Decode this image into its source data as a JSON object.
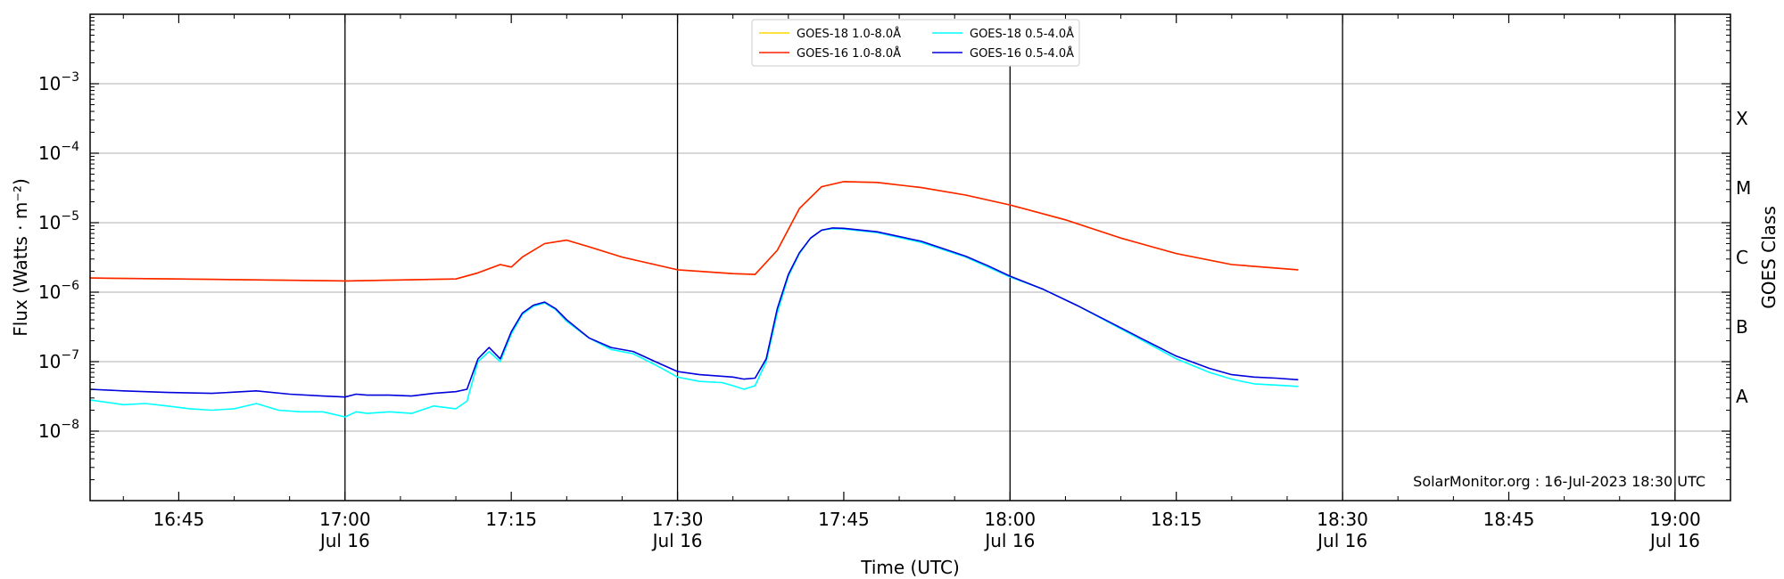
{
  "chart_data": {
    "type": "line",
    "xlabel": "Time (UTC)",
    "ylabel": "Flux (Watts · m⁻²)",
    "y2label": "GOES Class",
    "yscale": "log",
    "xlim": [
      "16:37",
      "19:05"
    ],
    "ylim": [
      1e-09,
      0.01
    ],
    "grid": "horizontal",
    "legend_position": "top-center",
    "credit": "SolarMonitor.org : 16-Jul-2023 18:30 UTC",
    "x_ticks": [
      {
        "time": "16:45",
        "label": "16:45",
        "sublabel": ""
      },
      {
        "time": "17:00",
        "label": "17:00",
        "sublabel": "Jul 16"
      },
      {
        "time": "17:15",
        "label": "17:15",
        "sublabel": ""
      },
      {
        "time": "17:30",
        "label": "17:30",
        "sublabel": "Jul 16"
      },
      {
        "time": "17:45",
        "label": "17:45",
        "sublabel": ""
      },
      {
        "time": "18:00",
        "label": "18:00",
        "sublabel": "Jul 16"
      },
      {
        "time": "18:15",
        "label": "18:15",
        "sublabel": ""
      },
      {
        "time": "18:30",
        "label": "18:30",
        "sublabel": "Jul 16"
      },
      {
        "time": "18:45",
        "label": "18:45",
        "sublabel": ""
      },
      {
        "time": "19:00",
        "label": "19:00",
        "sublabel": "Jul 16"
      }
    ],
    "y_ticks": [
      {
        "value": 1e-08,
        "mantissa": "10",
        "exp": "−8"
      },
      {
        "value": 1e-07,
        "mantissa": "10",
        "exp": "−7"
      },
      {
        "value": 1e-06,
        "mantissa": "10",
        "exp": "−6"
      },
      {
        "value": 1e-05,
        "mantissa": "10",
        "exp": "−5"
      },
      {
        "value": 0.0001,
        "mantissa": "10",
        "exp": "−4"
      },
      {
        "value": 0.001,
        "mantissa": "10",
        "exp": "−3"
      }
    ],
    "goes_classes": [
      {
        "label": "A",
        "value": 3.16e-08
      },
      {
        "label": "B",
        "value": 3.16e-07
      },
      {
        "label": "C",
        "value": 3.16e-06
      },
      {
        "label": "M",
        "value": 3.16e-05
      },
      {
        "label": "X",
        "value": 0.000316
      }
    ],
    "vertical_lines": [
      "17:00",
      "17:30",
      "18:00",
      "18:30",
      "19:00"
    ],
    "legend": [
      {
        "name": "GOES-18 1.0-8.0Å",
        "color": "#ffd700"
      },
      {
        "name": "GOES-18 0.5-4.0Å",
        "color": "#00ffff"
      },
      {
        "name": "GOES-16 1.0-8.0Å",
        "color": "#ff2000"
      },
      {
        "name": "GOES-16 0.5-4.0Å",
        "color": "#0000dd"
      }
    ],
    "series": [
      {
        "name": "GOES-18 1.0-8.0Å",
        "color": "#ffd700",
        "x": [
          "16:37",
          "16:45",
          "17:00",
          "17:10",
          "17:12",
          "17:14",
          "17:15",
          "17:16",
          "17:18",
          "17:20",
          "17:22",
          "17:25",
          "17:30",
          "17:35",
          "17:37",
          "17:39",
          "17:41",
          "17:43",
          "17:45",
          "17:48",
          "17:52",
          "17:56",
          "18:00",
          "18:05",
          "18:10",
          "18:15",
          "18:20",
          "18:26"
        ],
        "y": [
          1.6e-06,
          1.55e-06,
          1.45e-06,
          1.55e-06,
          1.9e-06,
          2.5e-06,
          2.3e-06,
          3.2e-06,
          5e-06,
          5.6e-06,
          4.5e-06,
          3.2e-06,
          2.1e-06,
          1.85e-06,
          1.8e-06,
          4e-06,
          1.6e-05,
          3.3e-05,
          3.9e-05,
          3.8e-05,
          3.2e-05,
          2.5e-05,
          1.8e-05,
          1.1e-05,
          6e-06,
          3.6e-06,
          2.5e-06,
          2.1e-06
        ]
      },
      {
        "name": "GOES-18 0.5-4.0Å",
        "color": "#00ffff",
        "x": [
          "16:37",
          "16:40",
          "16:42",
          "16:44",
          "16:46",
          "16:48",
          "16:50",
          "16:52",
          "16:54",
          "16:56",
          "16:58",
          "17:00",
          "17:01",
          "17:02",
          "17:04",
          "17:06",
          "17:08",
          "17:10",
          "17:11",
          "17:12",
          "17:13",
          "17:14",
          "17:15",
          "17:16",
          "17:17",
          "17:18",
          "17:19",
          "17:20",
          "17:22",
          "17:24",
          "17:26",
          "17:28",
          "17:30",
          "17:32",
          "17:34",
          "17:35",
          "17:36",
          "17:37",
          "17:38",
          "17:39",
          "17:40",
          "17:41",
          "17:42",
          "17:43",
          "17:44",
          "17:45",
          "17:48",
          "17:52",
          "17:56",
          "17:58",
          "18:00",
          "18:03",
          "18:06",
          "18:09",
          "18:12",
          "18:15",
          "18:18",
          "18:20",
          "18:22",
          "18:24",
          "18:26"
        ],
        "y": [
          2.8e-08,
          2.4e-08,
          2.5e-08,
          2.3e-08,
          2.1e-08,
          2e-08,
          2.1e-08,
          2.5e-08,
          2e-08,
          1.9e-08,
          1.9e-08,
          1.6e-08,
          1.9e-08,
          1.8e-08,
          1.9e-08,
          1.8e-08,
          2.3e-08,
          2.1e-08,
          2.7e-08,
          1e-07,
          1.4e-07,
          1e-07,
          2.5e-07,
          4.8e-07,
          6.3e-07,
          7e-07,
          5.6e-07,
          3.8e-07,
          2.2e-07,
          1.5e-07,
          1.3e-07,
          9e-08,
          6e-08,
          5.2e-08,
          5e-08,
          4.5e-08,
          4e-08,
          4.5e-08,
          1e-07,
          5e-07,
          1.7e-06,
          3.6e-06,
          6e-06,
          7.8e-06,
          8.2e-06,
          8.1e-06,
          7.2e-06,
          5.2e-06,
          3.2e-06,
          2.3e-06,
          1.65e-06,
          1.1e-06,
          6.5e-07,
          3.6e-07,
          2e-07,
          1.1e-07,
          7e-08,
          5.6e-08,
          4.8e-08,
          4.6e-08,
          4.4e-08
        ]
      },
      {
        "name": "GOES-16 1.0-8.0Å",
        "color": "#ff2000",
        "x": [
          "16:37",
          "16:45",
          "17:00",
          "17:10",
          "17:12",
          "17:14",
          "17:15",
          "17:16",
          "17:18",
          "17:20",
          "17:22",
          "17:25",
          "17:30",
          "17:35",
          "17:37",
          "17:39",
          "17:41",
          "17:43",
          "17:45",
          "17:48",
          "17:52",
          "17:56",
          "18:00",
          "18:05",
          "18:10",
          "18:15",
          "18:20",
          "18:26"
        ],
        "y": [
          1.6e-06,
          1.55e-06,
          1.45e-06,
          1.55e-06,
          1.9e-06,
          2.5e-06,
          2.3e-06,
          3.2e-06,
          5e-06,
          5.6e-06,
          4.5e-06,
          3.2e-06,
          2.1e-06,
          1.85e-06,
          1.8e-06,
          4e-06,
          1.6e-05,
          3.3e-05,
          3.9e-05,
          3.8e-05,
          3.2e-05,
          2.5e-05,
          1.8e-05,
          1.1e-05,
          6e-06,
          3.6e-06,
          2.5e-06,
          2.1e-06
        ]
      },
      {
        "name": "GOES-16 0.5-4.0Å",
        "color": "#0000dd",
        "x": [
          "16:37",
          "16:40",
          "16:44",
          "16:48",
          "16:52",
          "16:55",
          "16:58",
          "17:00",
          "17:01",
          "17:02",
          "17:04",
          "17:06",
          "17:08",
          "17:10",
          "17:11",
          "17:12",
          "17:13",
          "17:14",
          "17:15",
          "17:16",
          "17:17",
          "17:18",
          "17:19",
          "17:20",
          "17:22",
          "17:24",
          "17:26",
          "17:28",
          "17:30",
          "17:32",
          "17:35",
          "17:36",
          "17:37",
          "17:38",
          "17:39",
          "17:40",
          "17:41",
          "17:42",
          "17:43",
          "17:44",
          "17:45",
          "17:48",
          "17:52",
          "17:56",
          "17:58",
          "18:00",
          "18:03",
          "18:06",
          "18:09",
          "18:12",
          "18:15",
          "18:18",
          "18:20",
          "18:22",
          "18:24",
          "18:26"
        ],
        "y": [
          4e-08,
          3.8e-08,
          3.6e-08,
          3.5e-08,
          3.8e-08,
          3.4e-08,
          3.2e-08,
          3.1e-08,
          3.4e-08,
          3.3e-08,
          3.3e-08,
          3.2e-08,
          3.5e-08,
          3.7e-08,
          4e-08,
          1.1e-07,
          1.6e-07,
          1.1e-07,
          2.7e-07,
          5e-07,
          6.5e-07,
          7.2e-07,
          5.8e-07,
          4e-07,
          2.2e-07,
          1.6e-07,
          1.4e-07,
          1e-07,
          7.2e-08,
          6.5e-08,
          6e-08,
          5.6e-08,
          5.8e-08,
          1.1e-07,
          5.8e-07,
          1.8e-06,
          3.7e-06,
          6e-06,
          7.8e-06,
          8.4e-06,
          8.3e-06,
          7.4e-06,
          5.4e-06,
          3.3e-06,
          2.4e-06,
          1.7e-06,
          1.1e-06,
          6.5e-07,
          3.7e-07,
          2.1e-07,
          1.2e-07,
          8e-08,
          6.5e-08,
          6e-08,
          5.8e-08,
          5.5e-08
        ]
      }
    ]
  }
}
